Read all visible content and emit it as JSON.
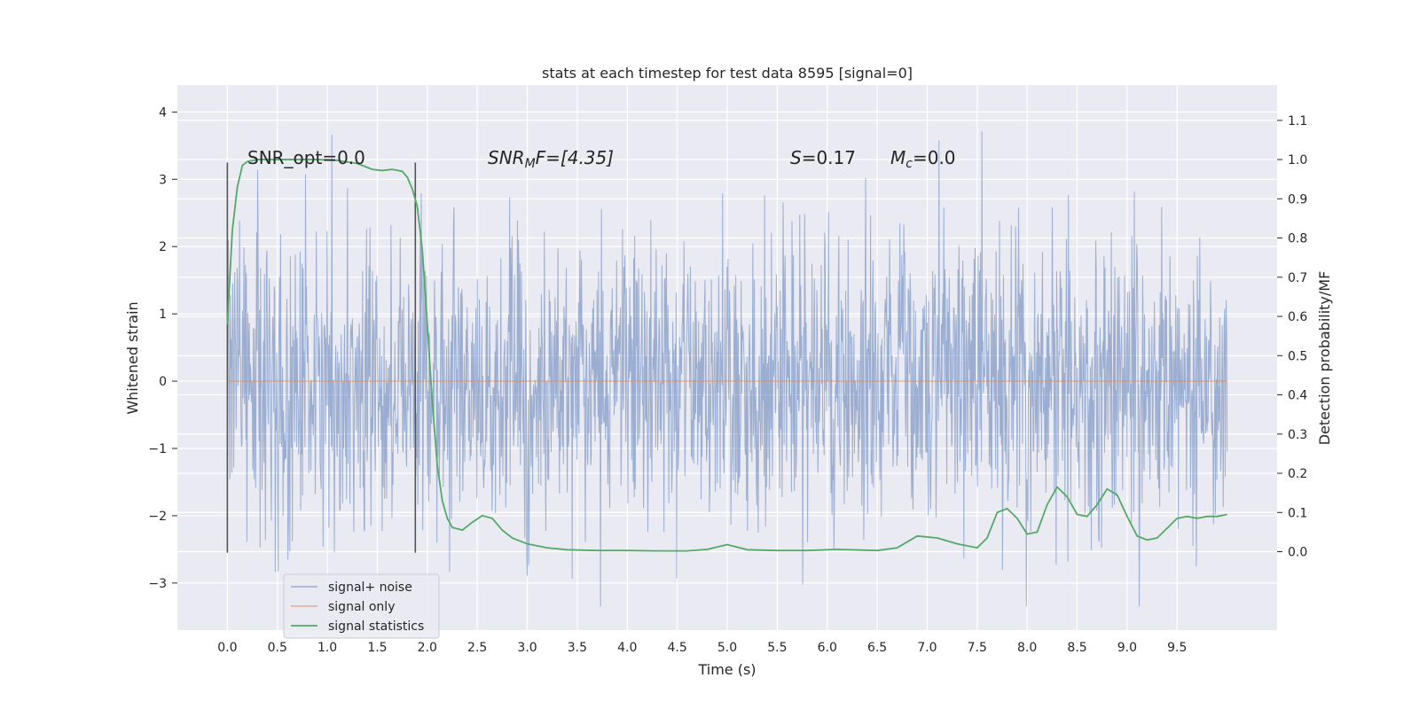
{
  "chart_data": {
    "type": "line",
    "title": "stats at each timestep for test data 8595 [signal=0]",
    "xlabel": "Time (s)",
    "ylabel": "Whitened strain",
    "y2label": "Detection probability/MF",
    "xlim": [
      -0.5,
      10.5
    ],
    "ylim": [
      -3.7,
      4.4
    ],
    "y2lim": [
      -0.2,
      1.19
    ],
    "xticks": [
      0.0,
      0.5,
      1.0,
      1.5,
      2.0,
      2.5,
      3.0,
      3.5,
      4.0,
      4.5,
      5.0,
      5.5,
      6.0,
      6.5,
      7.0,
      7.5,
      8.0,
      8.5,
      9.0,
      9.5
    ],
    "xtick_labels": [
      "0.0",
      "0.5",
      "1.0",
      "1.5",
      "2.0",
      "2.5",
      "3.0",
      "3.5",
      "4.0",
      "4.5",
      "5.0",
      "5.5",
      "6.0",
      "6.5",
      "7.0",
      "7.5",
      "8.0",
      "8.5",
      "9.0",
      "9.5"
    ],
    "yticks": [
      -3,
      -2,
      -1,
      0,
      1,
      2,
      3,
      4
    ],
    "ytick_labels": [
      "−3",
      "−2",
      "−1",
      "0",
      "1",
      "2",
      "3",
      "4"
    ],
    "y2ticks": [
      0.0,
      0.1,
      0.2,
      0.3,
      0.4,
      0.5,
      0.6,
      0.7,
      0.8,
      0.9,
      1.0,
      1.1
    ],
    "y2tick_labels": [
      "0.0",
      "0.1",
      "0.2",
      "0.3",
      "0.4",
      "0.5",
      "0.6",
      "0.7",
      "0.8",
      "0.9",
      "1.0",
      "1.1"
    ],
    "grid": true,
    "legend": "lower-left",
    "annotations": {
      "snr_opt": "SNR_opt=0.0",
      "snr_mf_sym": "SNR",
      "snr_mf_sub": "M",
      "snr_mf_rest": "F=[4.35]",
      "s_sym": "S",
      "s_rest": "=0.17",
      "mc_sym": "M",
      "mc_sub": "c",
      "mc_rest": "=0.0"
    },
    "vlines": [
      {
        "x": 0.0,
        "ymin": -2.55,
        "ymax": 3.25
      },
      {
        "x": 1.88,
        "ymin": -2.55,
        "ymax": 3.25
      }
    ],
    "series": [
      {
        "name": "signal+ noise",
        "color": "#4c72b0",
        "axis": "left",
        "x_range": [
          0.0,
          10.0
        ],
        "samples": 2048,
        "typical_spread": 1.4,
        "spike_envelope_max": [
          2.4,
          3.86,
          4.05,
          3.58
        ],
        "spike_envelope_min": [
          -2.95,
          -3.35,
          -3.3,
          -3.3
        ]
      },
      {
        "name": "signal only",
        "color": "#dd8452",
        "axis": "left",
        "x": [
          0.0,
          10.0
        ],
        "y": [
          0.0,
          0.0
        ]
      },
      {
        "name": "signal statistics",
        "color": "#55a868",
        "axis": "right",
        "x": [
          0.0,
          0.05,
          0.1,
          0.15,
          0.2,
          0.3,
          0.5,
          0.7,
          0.9,
          1.1,
          1.3,
          1.45,
          1.55,
          1.65,
          1.75,
          1.8,
          1.85,
          1.9,
          1.95,
          2.0,
          2.05,
          2.1,
          2.15,
          2.2,
          2.25,
          2.35,
          2.45,
          2.55,
          2.65,
          2.75,
          2.85,
          3.0,
          3.2,
          3.4,
          3.7,
          4.0,
          4.3,
          4.6,
          4.8,
          5.0,
          5.2,
          5.5,
          5.8,
          6.1,
          6.5,
          6.7,
          6.9,
          7.1,
          7.3,
          7.5,
          7.6,
          7.7,
          7.8,
          7.9,
          8.0,
          8.1,
          8.2,
          8.3,
          8.4,
          8.5,
          8.6,
          8.7,
          8.8,
          8.9,
          9.0,
          9.1,
          9.2,
          9.3,
          9.4,
          9.5,
          9.6,
          9.7,
          9.8,
          9.9,
          10.0
        ],
        "y": [
          0.58,
          0.82,
          0.93,
          0.985,
          0.995,
          1.0,
          1.0,
          1.0,
          1.0,
          0.998,
          0.99,
          0.975,
          0.972,
          0.975,
          0.97,
          0.955,
          0.925,
          0.88,
          0.77,
          0.58,
          0.38,
          0.22,
          0.13,
          0.085,
          0.062,
          0.055,
          0.075,
          0.092,
          0.085,
          0.055,
          0.035,
          0.02,
          0.01,
          0.005,
          0.003,
          0.003,
          0.002,
          0.002,
          0.006,
          0.018,
          0.005,
          0.003,
          0.003,
          0.006,
          0.003,
          0.01,
          0.04,
          0.035,
          0.02,
          0.01,
          0.035,
          0.1,
          0.11,
          0.085,
          0.045,
          0.05,
          0.12,
          0.165,
          0.14,
          0.095,
          0.09,
          0.12,
          0.16,
          0.145,
          0.09,
          0.04,
          0.03,
          0.035,
          0.06,
          0.085,
          0.09,
          0.085,
          0.09,
          0.09,
          0.095
        ]
      }
    ]
  }
}
